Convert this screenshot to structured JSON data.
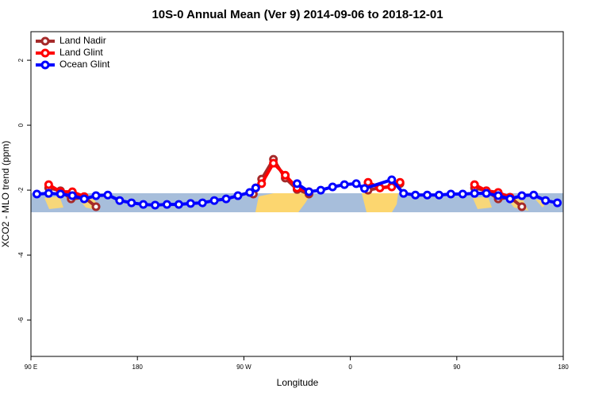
{
  "chart_data": {
    "type": "line",
    "title": "10S-0 Annual Mean (Ver 9)   2014-09-06 to 2018-12-01",
    "xlabel": "Longitude",
    "ylabel": "XCO2 - MLO trend (ppm)",
    "xlim": [
      90,
      540
    ],
    "ylim": [
      -7.12,
      2.88
    ],
    "xticks": [
      {
        "value": 90,
        "label": "90 E"
      },
      180,
      {
        "value": 270,
        "label": "90 W"
      },
      {
        "value": 360,
        "label": "0"
      },
      {
        "value": 450,
        "label": "90"
      },
      {
        "value": 540,
        "label": "180"
      }
    ],
    "yticks": [
      2,
      0,
      -2,
      -4,
      -6
    ],
    "legend": "top-left",
    "series": [
      {
        "name": "Land Nadir",
        "color": "#a52a2a",
        "x": [
          105,
          115,
          124,
          135,
          145,
          null,
          278,
          285,
          295,
          305,
          315,
          325,
          null,
          375,
          385,
          395,
          402,
          null,
          465,
          475,
          485,
          495,
          505
        ],
        "values": [
          -1.93,
          -2.02,
          -2.27,
          -2.22,
          -2.51,
          null,
          -2.12,
          -1.66,
          -1.05,
          -1.63,
          -1.98,
          -2.12,
          null,
          -2.0,
          -1.93,
          -1.88,
          -1.8,
          null,
          -1.93,
          -2.02,
          -2.27,
          -2.22,
          -2.51
        ]
      },
      {
        "name": "Land Glint",
        "color": "#ff0000",
        "x": [
          105,
          115,
          125,
          135,
          null,
          280,
          285,
          295,
          305,
          315,
          325,
          null,
          375,
          385,
          395,
          402,
          null,
          465,
          475,
          485,
          495
        ],
        "values": [
          -1.83,
          -2.05,
          -2.05,
          -2.2,
          null,
          -1.93,
          -1.8,
          -1.17,
          -1.54,
          -1.93,
          -2.05,
          null,
          -1.76,
          -1.93,
          -1.9,
          -1.76,
          null,
          -1.83,
          -2.02,
          -2.07,
          -2.22
        ]
      },
      {
        "name": "Ocean Glint",
        "color": "#0000ff",
        "x": [
          95,
          105,
          115,
          125,
          135,
          145,
          155,
          165,
          175,
          185,
          195,
          205,
          215,
          225,
          235,
          245,
          255,
          265,
          275,
          280,
          null,
          315,
          325,
          335,
          345,
          355,
          365,
          372,
          395,
          405,
          415,
          425,
          435,
          445,
          455,
          465,
          475,
          485,
          495,
          505,
          515,
          525,
          535
        ],
        "values": [
          -2.12,
          -2.1,
          -2.12,
          -2.17,
          -2.27,
          -2.17,
          -2.15,
          -2.32,
          -2.39,
          -2.44,
          -2.46,
          -2.44,
          -2.44,
          -2.41,
          -2.39,
          -2.32,
          -2.27,
          -2.17,
          -2.07,
          -1.93,
          null,
          -1.8,
          -2.05,
          -2.0,
          -1.9,
          -1.83,
          -1.8,
          -1.95,
          -1.68,
          -2.1,
          -2.15,
          -2.15,
          -2.15,
          -2.12,
          -2.12,
          -2.1,
          -2.1,
          -2.17,
          -2.27,
          -2.17,
          -2.15,
          -2.32,
          -2.39
        ]
      }
    ]
  }
}
